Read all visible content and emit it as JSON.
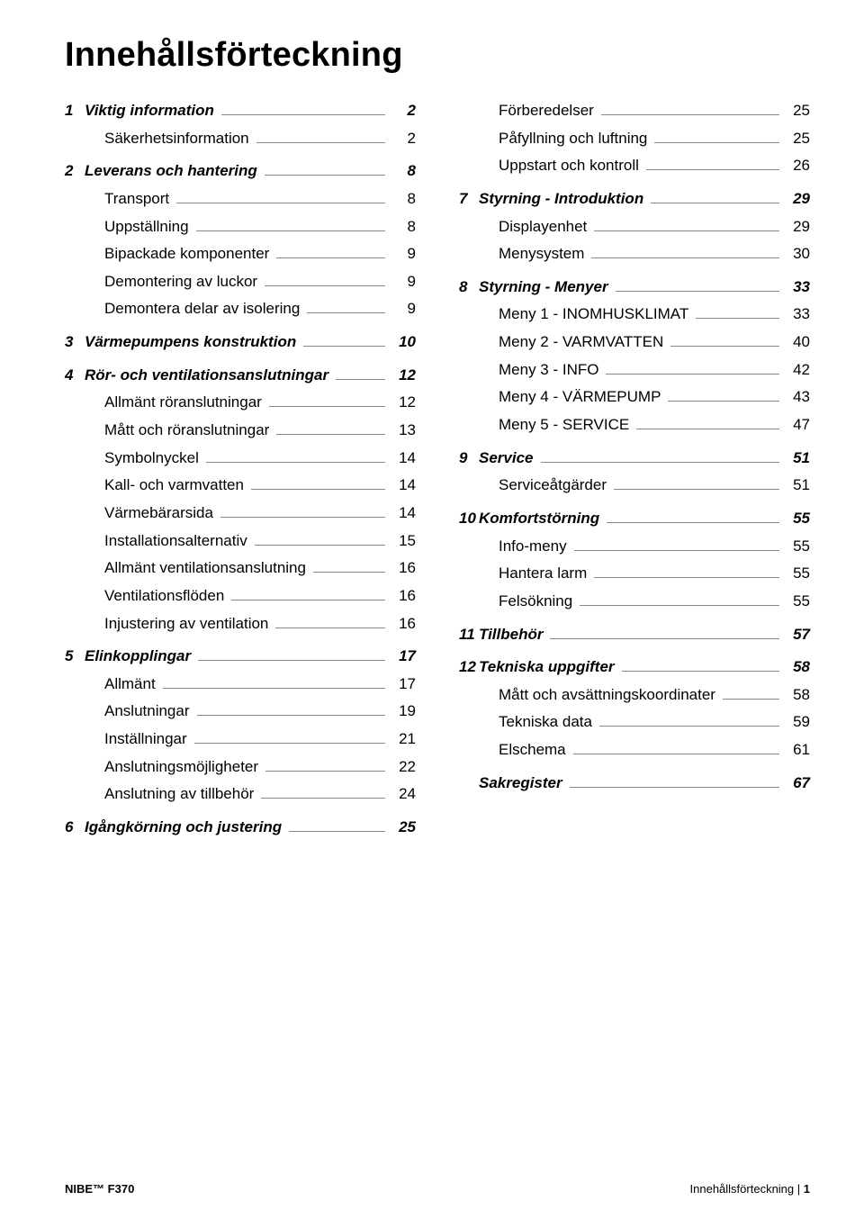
{
  "title": "Innehållsförteckning",
  "footer": {
    "left": "NIBE™ F370",
    "right_label": "Innehållsförteckning",
    "right_sep": " | ",
    "right_page": "1"
  },
  "left": [
    {
      "section": true,
      "num": "1",
      "label": "Viktig information",
      "page": "2"
    },
    {
      "section": false,
      "num": "",
      "label": "Säkerhetsinformation",
      "page": "2"
    },
    {
      "section": true,
      "num": "2",
      "label": "Leverans och hantering",
      "page": "8"
    },
    {
      "section": false,
      "num": "",
      "label": "Transport",
      "page": "8"
    },
    {
      "section": false,
      "num": "",
      "label": "Uppställning",
      "page": "8"
    },
    {
      "section": false,
      "num": "",
      "label": "Bipackade komponenter",
      "page": "9"
    },
    {
      "section": false,
      "num": "",
      "label": "Demontering av luckor",
      "page": "9"
    },
    {
      "section": false,
      "num": "",
      "label": "Demontera delar av isolering",
      "page": "9"
    },
    {
      "section": true,
      "num": "3",
      "label": "Värmepumpens konstruktion",
      "page": "10"
    },
    {
      "section": true,
      "num": "4",
      "label": "Rör- och ventilationsanslutningar",
      "page": "12"
    },
    {
      "section": false,
      "num": "",
      "label": "Allmänt röranslutningar",
      "page": "12"
    },
    {
      "section": false,
      "num": "",
      "label": "Mått och röranslutningar",
      "page": "13"
    },
    {
      "section": false,
      "num": "",
      "label": "Symbolnyckel",
      "page": "14"
    },
    {
      "section": false,
      "num": "",
      "label": "Kall- och varmvatten",
      "page": "14"
    },
    {
      "section": false,
      "num": "",
      "label": "Värmebärarsida",
      "page": "14"
    },
    {
      "section": false,
      "num": "",
      "label": "Installationsalternativ",
      "page": "15"
    },
    {
      "section": false,
      "num": "",
      "label": "Allmänt ventilationsanslutning",
      "page": "16"
    },
    {
      "section": false,
      "num": "",
      "label": "Ventilationsflöden",
      "page": "16"
    },
    {
      "section": false,
      "num": "",
      "label": "Injustering av ventilation",
      "page": "16"
    },
    {
      "section": true,
      "num": "5",
      "label": "Elinkopplingar",
      "page": "17"
    },
    {
      "section": false,
      "num": "",
      "label": "Allmänt",
      "page": "17"
    },
    {
      "section": false,
      "num": "",
      "label": "Anslutningar",
      "page": "19"
    },
    {
      "section": false,
      "num": "",
      "label": "Inställningar",
      "page": "21"
    },
    {
      "section": false,
      "num": "",
      "label": "Anslutningsmöjligheter",
      "page": "22"
    },
    {
      "section": false,
      "num": "",
      "label": "Anslutning av tillbehör",
      "page": "24"
    },
    {
      "section": true,
      "num": "6",
      "label": "Igångkörning och justering",
      "page": "25"
    }
  ],
  "right": [
    {
      "section": false,
      "num": "",
      "label": "Förberedelser",
      "page": "25"
    },
    {
      "section": false,
      "num": "",
      "label": "Påfyllning och luftning",
      "page": "25"
    },
    {
      "section": false,
      "num": "",
      "label": "Uppstart och kontroll",
      "page": "26"
    },
    {
      "section": true,
      "num": "7",
      "label": "Styrning - Introduktion",
      "page": "29"
    },
    {
      "section": false,
      "num": "",
      "label": "Displayenhet",
      "page": "29"
    },
    {
      "section": false,
      "num": "",
      "label": "Menysystem",
      "page": "30"
    },
    {
      "section": true,
      "num": "8",
      "label": "Styrning - Menyer",
      "page": "33"
    },
    {
      "section": false,
      "num": "",
      "label": "Meny 1 - INOMHUSKLIMAT",
      "page": "33"
    },
    {
      "section": false,
      "num": "",
      "label": "Meny 2 - VARMVATTEN",
      "page": "40"
    },
    {
      "section": false,
      "num": "",
      "label": "Meny 3 - INFO",
      "page": "42"
    },
    {
      "section": false,
      "num": "",
      "label": "Meny 4 - VÄRMEPUMP",
      "page": "43"
    },
    {
      "section": false,
      "num": "",
      "label": "Meny 5 - SERVICE",
      "page": "47"
    },
    {
      "section": true,
      "num": "9",
      "label": "Service",
      "page": "51"
    },
    {
      "section": false,
      "num": "",
      "label": "Serviceåtgärder",
      "page": "51"
    },
    {
      "section": true,
      "num": "10",
      "label": "Komfortstörning",
      "page": "55"
    },
    {
      "section": false,
      "num": "",
      "label": "Info-meny",
      "page": "55"
    },
    {
      "section": false,
      "num": "",
      "label": "Hantera larm",
      "page": "55"
    },
    {
      "section": false,
      "num": "",
      "label": "Felsökning",
      "page": "55"
    },
    {
      "section": true,
      "num": "11",
      "label": "Tillbehör",
      "page": "57"
    },
    {
      "section": true,
      "num": "12",
      "label": "Tekniska uppgifter",
      "page": "58"
    },
    {
      "section": false,
      "num": "",
      "label": "Mått och avsättningskoordinater",
      "page": "58"
    },
    {
      "section": false,
      "num": "",
      "label": "Tekniska data",
      "page": "59"
    },
    {
      "section": false,
      "num": "",
      "label": "Elschema",
      "page": "61"
    },
    {
      "section": true,
      "num": "",
      "label": "Sakregister",
      "page": "67"
    }
  ]
}
